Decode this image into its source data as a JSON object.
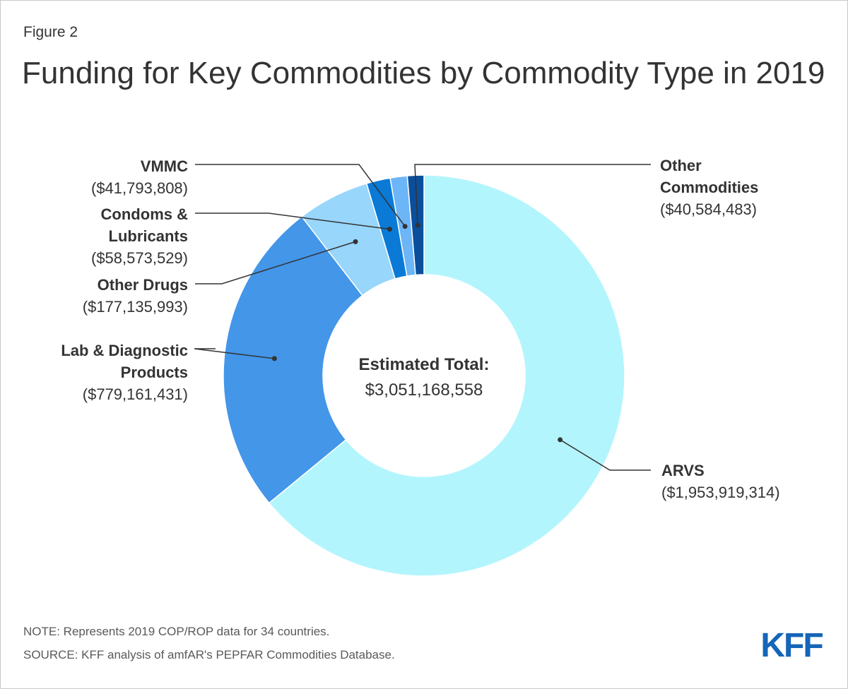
{
  "figure_label": "Figure 2",
  "title": "Funding for Key Commodities by Commodity Type in 2019",
  "note": "NOTE: Represents 2019 COP/ROP data for 34 countries.",
  "source": "SOURCE: KFF analysis of amfAR's PEPFAR Commodities Database.",
  "logo_text": "KFF",
  "colors": {
    "brand": "#1565b8"
  },
  "chart_data": {
    "type": "pie",
    "variant": "donut",
    "center_label": "Estimated Total:",
    "center_value": "$3,051,168,558",
    "slices": [
      {
        "name": "ARVS",
        "value": 1953919314,
        "value_label": "($1,953,919,314)",
        "color": "#b3f5fd"
      },
      {
        "name": "Lab & Diagnostic Products",
        "name_lines": [
          "Lab & Diagnostic",
          "Products"
        ],
        "value": 779161431,
        "value_label": "($779,161,431)",
        "color": "#4396e8"
      },
      {
        "name": "Other Drugs",
        "name_lines": [
          "Other Drugs"
        ],
        "value": 177135993,
        "value_label": "($177,135,993)",
        "color": "#98d6fc"
      },
      {
        "name": "Condoms & Lubricants",
        "name_lines": [
          "Condoms &",
          "Lubricants"
        ],
        "value": 58573529,
        "value_label": "($58,573,529)",
        "color": "#0a7ad6"
      },
      {
        "name": "VMMC",
        "name_lines": [
          "VMMC"
        ],
        "value": 41793808,
        "value_label": "($41,793,808)",
        "color": "#6cb5f7"
      },
      {
        "name": "Other Commodities",
        "name_lines": [
          "Other",
          "Commodities"
        ],
        "value": 40584483,
        "value_label": "($40,584,483)",
        "color": "#0b4f9c"
      }
    ]
  }
}
